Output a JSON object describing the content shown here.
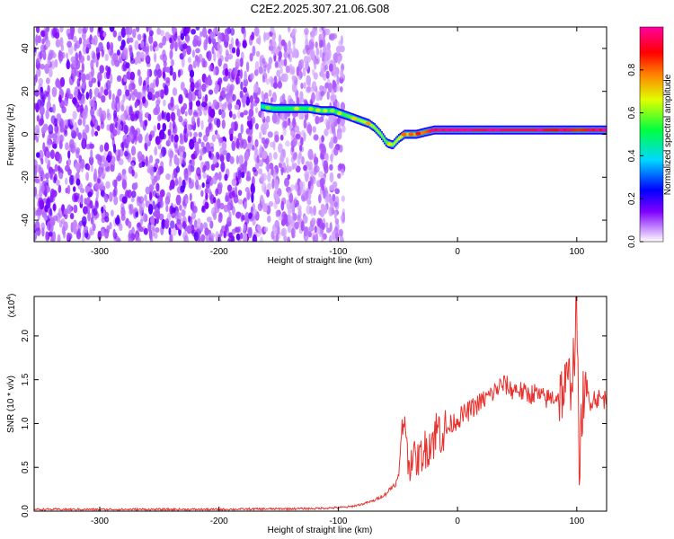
{
  "figure": {
    "title": "C2E2.2025.307.21.06.G08"
  },
  "chart_data": [
    {
      "type": "heatmap",
      "xlabel": "Height of straight line (km)",
      "ylabel": "Frequency (Hz)",
      "xlim": [
        -355,
        125
      ],
      "ylim": [
        -50,
        50
      ],
      "x_ticks": [
        -300,
        -200,
        -100,
        0,
        100
      ],
      "y_ticks": [
        -40,
        -20,
        0,
        20,
        40
      ],
      "colorbar": {
        "label": "Normalized spectral amplitude",
        "range": [
          0,
          1
        ],
        "ticks": [
          0.0,
          0.2,
          0.4,
          0.6,
          0.8
        ],
        "colormap": [
          "#ffffff",
          "#a000ff",
          "#0000ff",
          "#00ffff",
          "#00ff00",
          "#ffff00",
          "#ff0000",
          "#ff00ff"
        ]
      },
      "noise_region_x": [
        -355,
        -95
      ],
      "trace": [
        {
          "x": -165,
          "y": 13,
          "a": 0.45
        },
        {
          "x": -155,
          "y": 12,
          "a": 0.5
        },
        {
          "x": -145,
          "y": 12,
          "a": 0.5
        },
        {
          "x": -135,
          "y": 12,
          "a": 0.55
        },
        {
          "x": -125,
          "y": 12,
          "a": 0.5
        },
        {
          "x": -115,
          "y": 11,
          "a": 0.55
        },
        {
          "x": -105,
          "y": 11,
          "a": 0.5
        },
        {
          "x": -95,
          "y": 9,
          "a": 0.55
        },
        {
          "x": -85,
          "y": 7,
          "a": 0.6
        },
        {
          "x": -75,
          "y": 5,
          "a": 0.65
        },
        {
          "x": -70,
          "y": 3,
          "a": 0.6
        },
        {
          "x": -65,
          "y": 0,
          "a": 0.6
        },
        {
          "x": -60,
          "y": -4,
          "a": 0.55
        },
        {
          "x": -55,
          "y": -5,
          "a": 0.6
        },
        {
          "x": -50,
          "y": -2,
          "a": 0.65
        },
        {
          "x": -45,
          "y": 0,
          "a": 0.7
        },
        {
          "x": -40,
          "y": 0,
          "a": 0.7
        },
        {
          "x": -35,
          "y": 0,
          "a": 0.75
        },
        {
          "x": -28,
          "y": 1,
          "a": 0.8
        },
        {
          "x": -20,
          "y": 2,
          "a": 0.9
        },
        {
          "x": 0,
          "y": 2,
          "a": 0.95
        },
        {
          "x": 20,
          "y": 2,
          "a": 0.95
        },
        {
          "x": 40,
          "y": 2,
          "a": 0.95
        },
        {
          "x": 60,
          "y": 2,
          "a": 0.95
        },
        {
          "x": 80,
          "y": 2,
          "a": 0.9
        },
        {
          "x": 100,
          "y": 2,
          "a": 0.85
        },
        {
          "x": 125,
          "y": 2,
          "a": 0.9
        }
      ]
    },
    {
      "type": "line",
      "xlabel": "Height of straight line (km)",
      "ylabel": "SNR (10 * v/v)",
      "y_multiplier": "(x10",
      "y_multiplier_exp": "4",
      "y_multiplier_close": ")",
      "xlim": [
        -355,
        125
      ],
      "ylim": [
        0,
        2.45
      ],
      "x_ticks": [
        -300,
        -200,
        -100,
        0,
        100
      ],
      "y_ticks": [
        "0.0",
        "0.5",
        "1.0",
        "1.5",
        "2.0"
      ],
      "series": [
        {
          "color": "#e8302c",
          "x": [
            -355,
            -300,
            -200,
            -120,
            -100,
            -90,
            -80,
            -70,
            -60,
            -50,
            -46,
            -44,
            -42,
            -40,
            -38,
            -35,
            -30,
            -25,
            -20,
            -15,
            -10,
            -5,
            0,
            5,
            10,
            15,
            20,
            25,
            30,
            35,
            40,
            45,
            50,
            55,
            60,
            65,
            70,
            75,
            80,
            85,
            90,
            95,
            98,
            100,
            102,
            105,
            110,
            115,
            120,
            125
          ],
          "values": [
            0.02,
            0.02,
            0.02,
            0.03,
            0.04,
            0.05,
            0.08,
            0.12,
            0.2,
            0.35,
            0.9,
            1.2,
            0.6,
            0.5,
            0.7,
            0.55,
            0.65,
            0.75,
            0.85,
            0.95,
            0.9,
            1.0,
            1.05,
            1.1,
            1.15,
            1.2,
            1.25,
            1.3,
            1.35,
            1.42,
            1.45,
            1.38,
            1.4,
            1.35,
            1.33,
            1.35,
            1.3,
            1.28,
            1.3,
            1.32,
            1.4,
            1.5,
            1.8,
            2.4,
            0.4,
            1.3,
            1.25,
            1.3,
            1.28,
            1.28
          ],
          "noise_amplitude": 0.12
        }
      ]
    }
  ]
}
